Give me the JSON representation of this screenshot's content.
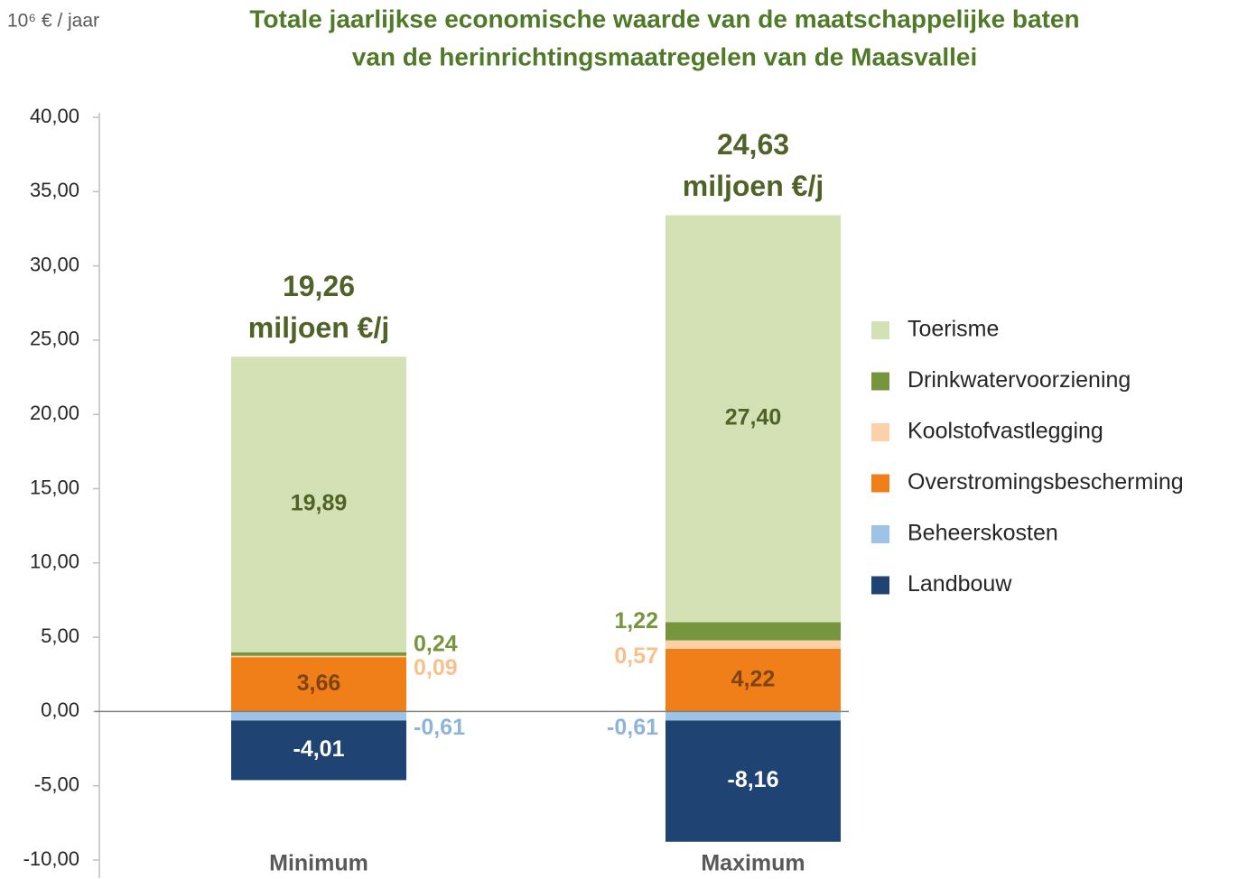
{
  "chart_data": {
    "type": "stacked-bar",
    "title": [
      "Totale jaarlijkse economische waarde van de maatschappelijke baten",
      "van de herinrichtingsmaatregelen van de Maasvallei"
    ],
    "y_axis_label": "10⁶ € / jaar",
    "categories": [
      "Minimum",
      "Maximum"
    ],
    "series": [
      {
        "name": "Toerisme",
        "color": "#d3e1b5",
        "label_color": "#4f6228",
        "values": [
          19.89,
          27.4
        ],
        "value_labels": [
          "19,89",
          "27,40"
        ]
      },
      {
        "name": "Drinkwatervoorziening",
        "color": "#76953c",
        "label_color": "#76953c",
        "values": [
          0.24,
          1.22
        ],
        "value_labels": [
          "0,24",
          "1,22"
        ]
      },
      {
        "name": "Koolstofvastlegging",
        "color": "#fcd0a8",
        "label_color": "#f9c08c",
        "values": [
          0.09,
          0.57
        ],
        "value_labels": [
          "0,09",
          "0,57"
        ]
      },
      {
        "name": "Overstromingsbescherming",
        "color": "#f07f1a",
        "label_color": "#7f4310",
        "values": [
          3.66,
          4.22
        ],
        "value_labels": [
          "3,66",
          "4,22"
        ]
      },
      {
        "name": "Beheerskosten",
        "color": "#9dc3e6",
        "label_color": "#8fb4dc",
        "values": [
          -0.61,
          -0.61
        ],
        "value_labels": [
          "-0,61",
          "-0,61"
        ]
      },
      {
        "name": "Landbouw",
        "color": "#1f4474",
        "label_color": "#ffffff",
        "values": [
          -4.01,
          -8.16
        ],
        "value_labels": [
          "-4,01",
          "-8,16"
        ]
      }
    ],
    "totals": [
      "19,26",
      "24,63"
    ],
    "totals_unit": "miljoen €/j",
    "ylim": [
      -10,
      40
    ],
    "yticks": [
      {
        "value": -10,
        "label": "-10,00"
      },
      {
        "value": -5,
        "label": "-5,00"
      },
      {
        "value": 0,
        "label": "0,00"
      },
      {
        "value": 5,
        "label": "5,00"
      },
      {
        "value": 10,
        "label": "10,00"
      },
      {
        "value": 15,
        "label": "15,00"
      },
      {
        "value": 20,
        "label": "20,00"
      },
      {
        "value": 25,
        "label": "25,00"
      },
      {
        "value": 30,
        "label": "30,00"
      },
      {
        "value": 35,
        "label": "35,00"
      },
      {
        "value": 40,
        "label": "40,00"
      }
    ],
    "grid": false,
    "legend": "right"
  }
}
